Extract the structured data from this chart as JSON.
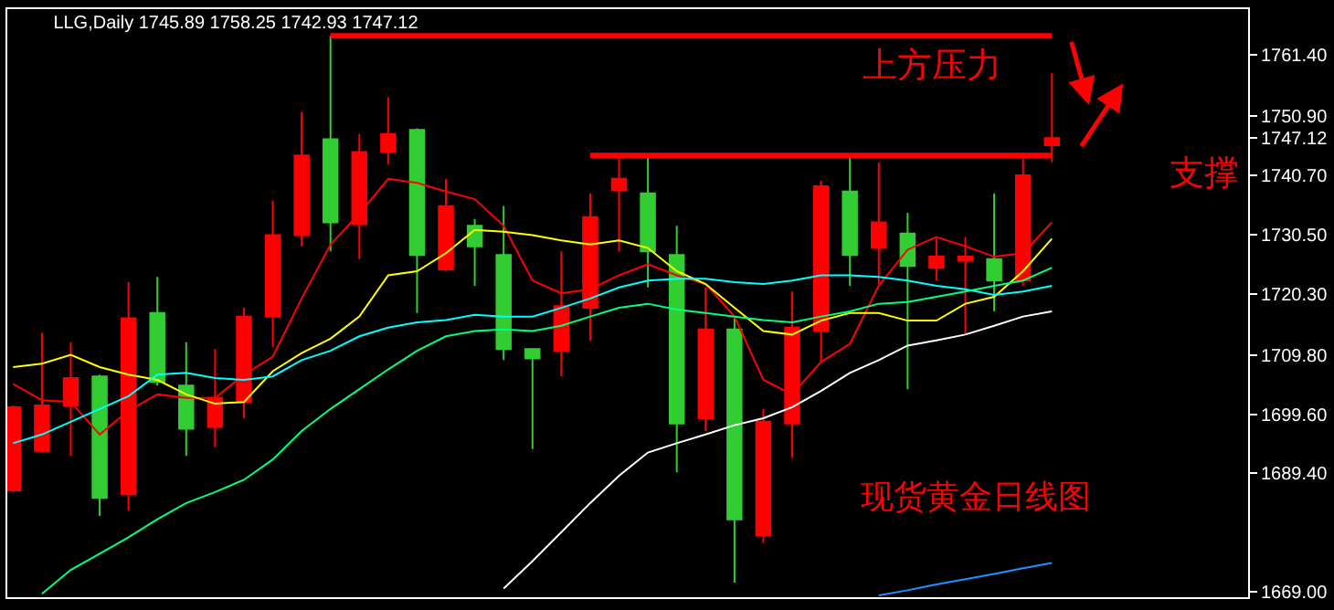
{
  "chart_data": {
    "type": "candlestick",
    "title": "LLG,Daily 1745.89 1758.25 1742.93 1747.12",
    "categories": [
      null,
      null,
      null,
      null,
      null,
      null,
      null,
      null,
      null,
      null,
      null,
      null,
      null,
      null,
      null,
      null,
      null,
      null,
      null,
      null,
      null,
      null,
      null,
      null,
      null,
      null,
      null,
      null,
      null,
      null,
      null,
      null,
      null,
      null,
      null,
      null,
      null
    ],
    "ohlc": [
      [
        1686.5,
        1701.1,
        1686.2,
        1700.8
      ],
      [
        1693.3,
        1713.6,
        1693.0,
        1701.1
      ],
      [
        1701.1,
        1712.0,
        1692.4,
        1705.8
      ],
      [
        1706.1,
        1706.4,
        1682.1,
        1685.2
      ],
      [
        1685.8,
        1722.3,
        1683.0,
        1716.1
      ],
      [
        1717.0,
        1723.2,
        1704.5,
        1705.2
      ],
      [
        1704.5,
        1712.0,
        1692.4,
        1697.1
      ],
      [
        1697.4,
        1710.8,
        1693.9,
        1702.4
      ],
      [
        1701.7,
        1717.9,
        1698.9,
        1716.4
      ],
      [
        1716.4,
        1736.3,
        1711.1,
        1730.4
      ],
      [
        1730.4,
        1751.6,
        1728.5,
        1744.1
      ],
      [
        1746.9,
        1764.7,
        1727.6,
        1732.6
      ],
      [
        1732.3,
        1747.8,
        1726.3,
        1744.7
      ],
      [
        1744.7,
        1754.1,
        1742.6,
        1747.8
      ],
      [
        1748.5,
        1748.8,
        1717.0,
        1727.0
      ],
      [
        1724.5,
        1740.1,
        1724.2,
        1735.4
      ],
      [
        1732.0,
        1733.2,
        1721.7,
        1728.5
      ],
      [
        1727.0,
        1735.4,
        1708.9,
        1710.8
      ],
      [
        1710.8,
        1710.8,
        1693.6,
        1709.2
      ],
      [
        1710.5,
        1727.6,
        1706.1,
        1718.2
      ],
      [
        1717.9,
        1737.6,
        1712.3,
        1733.5
      ],
      [
        1738.2,
        1744.1,
        1727.6,
        1740.1
      ],
      [
        1737.6,
        1744.1,
        1721.4,
        1727.6
      ],
      [
        1727.0,
        1732.0,
        1689.6,
        1698.0
      ],
      [
        1698.9,
        1721.4,
        1696.7,
        1714.2
      ],
      [
        1714.2,
        1716.1,
        1670.6,
        1681.5
      ],
      [
        1678.7,
        1700.5,
        1677.4,
        1698.3
      ],
      [
        1698.0,
        1720.7,
        1692.1,
        1714.5
      ],
      [
        1713.9,
        1739.7,
        1708.6,
        1738.8
      ],
      [
        1737.9,
        1744.1,
        1721.7,
        1727.0
      ],
      [
        1728.2,
        1742.9,
        1722.0,
        1732.6
      ],
      [
        1730.7,
        1734.2,
        1703.9,
        1725.1
      ],
      [
        1724.8,
        1729.8,
        1722.6,
        1726.7
      ],
      [
        1726.0,
        1730.1,
        1713.3,
        1726.7
      ],
      [
        1726.3,
        1737.6,
        1717.3,
        1722.6
      ],
      [
        1722.6,
        1744.1,
        1721.7,
        1740.7
      ],
      [
        1745.89,
        1758.25,
        1742.93,
        1747.12
      ]
    ],
    "colors": [
      "#ff0000",
      "#ff0000",
      "#ff0000",
      "#32cd32",
      "#ff0000",
      "#32cd32",
      "#32cd32",
      "#ff0000",
      "#ff0000",
      "#ff0000",
      "#ff0000",
      "#32cd32",
      "#ff0000",
      "#ff0000",
      "#32cd32",
      "#ff0000",
      "#32cd32",
      "#32cd32",
      "#32cd32",
      "#ff0000",
      "#ff0000",
      "#ff0000",
      "#32cd32",
      "#32cd32",
      "#ff0000",
      "#32cd32",
      "#ff0000",
      "#ff0000",
      "#ff0000",
      "#32cd32",
      "#ff0000",
      "#32cd32",
      "#ff0000",
      "#ff0000",
      "#32cd32",
      "#ff0000",
      "#ff0000"
    ],
    "series": [
      {
        "type": "line",
        "color": "#ff0000",
        "values": [
          1704.8,
          1702.0,
          1701.7,
          1696.1,
          1700.2,
          1703.0,
          1702.4,
          1702.4,
          1706.4,
          1709.5,
          1719.5,
          1728.8,
          1734.1,
          1740.1,
          1739.4,
          1737.9,
          1736.6,
          1732.0,
          1722.6,
          1720.4,
          1721.1,
          1723.5,
          1725.4,
          1723.5,
          1722.0,
          1716.4,
          1705.5,
          1703.0,
          1708.6,
          1711.7,
          1721.7,
          1727.9,
          1730.1,
          1728.5,
          1726.7,
          1727.3,
          1732.6
        ]
      },
      {
        "type": "line",
        "color": "#ffff00",
        "values": [
          1707.7,
          1708.3,
          1709.8,
          1707.7,
          1706.4,
          1705.5,
          1703.0,
          1701.4,
          1701.7,
          1707.0,
          1710.1,
          1712.6,
          1716.4,
          1723.5,
          1724.2,
          1727.3,
          1731.3,
          1731.0,
          1730.4,
          1729.5,
          1728.8,
          1729.5,
          1728.2,
          1724.2,
          1722.0,
          1717.9,
          1713.9,
          1713.3,
          1715.7,
          1717.0,
          1717.0,
          1715.7,
          1715.7,
          1718.6,
          1719.8,
          1724.2,
          1729.8
        ]
      },
      {
        "type": "line",
        "color": "#00ffff",
        "values": [
          1694.6,
          1696.1,
          1698.3,
          1700.5,
          1702.7,
          1706.4,
          1706.7,
          1705.8,
          1705.5,
          1706.1,
          1708.9,
          1710.5,
          1713.0,
          1714.5,
          1715.4,
          1715.8,
          1716.7,
          1716.4,
          1716.4,
          1717.9,
          1719.5,
          1721.4,
          1722.6,
          1722.9,
          1722.9,
          1722.3,
          1722.0,
          1722.6,
          1723.5,
          1723.5,
          1723.2,
          1722.6,
          1721.7,
          1721.1,
          1720.1,
          1720.7,
          1721.7
        ]
      },
      {
        "type": "line",
        "color": "#00ff7f",
        "values": [
          null,
          1668.7,
          1672.8,
          1675.6,
          1678.4,
          1681.5,
          1684.3,
          1686.2,
          1688.3,
          1691.8,
          1696.7,
          1700.5,
          1703.9,
          1707.3,
          1710.5,
          1713.0,
          1713.9,
          1714.2,
          1713.9,
          1714.8,
          1716.4,
          1717.9,
          1718.6,
          1717.6,
          1717.0,
          1716.4,
          1715.8,
          1715.4,
          1716.4,
          1717.3,
          1718.6,
          1718.9,
          1719.8,
          1720.7,
          1721.7,
          1722.6,
          1724.8
        ]
      },
      {
        "type": "line",
        "color": "#ffffff",
        "values": [
          null,
          null,
          null,
          null,
          null,
          null,
          null,
          null,
          null,
          null,
          null,
          null,
          null,
          null,
          null,
          null,
          null,
          1669.6,
          1674.3,
          1679.3,
          1684.3,
          1689.0,
          1693.0,
          1694.6,
          1696.1,
          1697.7,
          1698.9,
          1700.8,
          1703.6,
          1706.7,
          1708.9,
          1711.4,
          1712.3,
          1713.3,
          1714.8,
          1716.4,
          1717.3
        ]
      },
      {
        "type": "line",
        "color": "#1e90ff",
        "values": [
          null,
          null,
          null,
          null,
          null,
          null,
          null,
          null,
          null,
          null,
          null,
          null,
          null,
          null,
          null,
          null,
          null,
          null,
          null,
          null,
          null,
          null,
          null,
          null,
          null,
          null,
          null,
          null,
          null,
          null,
          1668.4,
          1669.3,
          1670.3,
          1671.2,
          1672.1,
          1673.1,
          1674.0
        ]
      },
      {
        "type": "line",
        "color": "#ff0000",
        "values": [
          null,
          null,
          null,
          null,
          null,
          null,
          null,
          null,
          null,
          null,
          null,
          1764.7,
          1764.7,
          1764.7,
          1764.7,
          1764.7,
          1764.7,
          1764.7,
          1764.7,
          1764.7,
          1764.7,
          1764.7,
          1764.7,
          1764.7,
          1764.7,
          1764.7,
          1764.7,
          1764.7,
          1764.7,
          1764.7,
          1764.7,
          1764.7,
          1764.7,
          1764.7,
          1764.7,
          1764.7,
          1764.7
        ]
      },
      {
        "type": "line",
        "color": "#ff0000",
        "values": [
          null,
          null,
          null,
          null,
          null,
          null,
          null,
          null,
          null,
          null,
          null,
          null,
          null,
          null,
          null,
          null,
          null,
          null,
          null,
          null,
          1744.1,
          1744.1,
          1744.1,
          1744.1,
          1744.1,
          1744.1,
          1744.1,
          1744.1,
          1744.1,
          1744.1,
          1744.1,
          1744.1,
          1744.1,
          1744.1,
          1744.1,
          1744.1,
          1744.1
        ]
      }
    ],
    "ylim": [
      1668.1,
      1769.3
    ],
    "yticks": [
      {
        "value": 1761.4,
        "label": "1761.40"
      },
      {
        "value": 1750.9,
        "label": "1750.90"
      },
      {
        "value": 1747.12,
        "label": "1747.12"
      },
      {
        "value": 1740.7,
        "label": "1740.70"
      },
      {
        "value": 1730.5,
        "label": "1730.50"
      },
      {
        "value": 1720.3,
        "label": "1720.30"
      },
      {
        "value": 1709.8,
        "label": "1709.80"
      },
      {
        "value": 1699.6,
        "label": "1699.60"
      },
      {
        "value": 1689.4,
        "label": "1689.40"
      },
      {
        "value": 1669.0,
        "label": "1669.00"
      }
    ],
    "tick_labels": "y",
    "grid": false,
    "annotations": [
      "上方压力",
      "支撑",
      "现货黄金日线图"
    ]
  }
}
